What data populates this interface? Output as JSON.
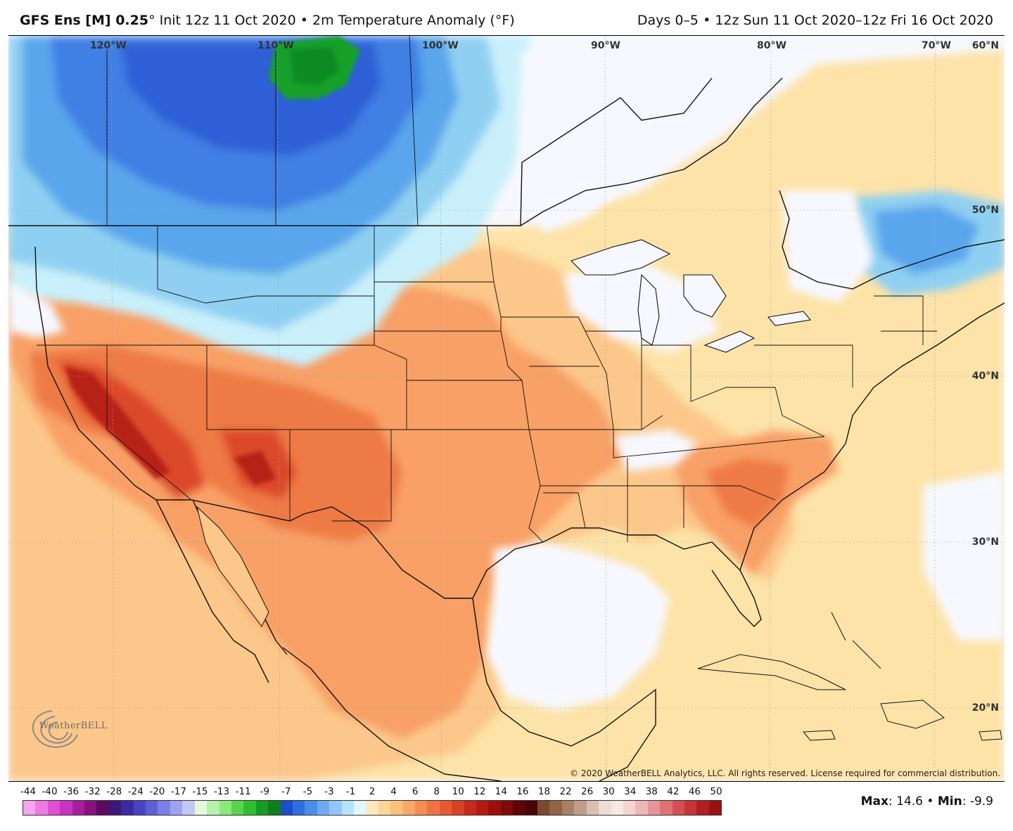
{
  "header": {
    "model": "GFS Ens [M] 0.25",
    "degree": "°",
    "init": "Init 12z 11 Oct 2020",
    "sep": "•",
    "variable": "2m Temperature Anomaly (°F)",
    "days": "Days 0–5",
    "period": "12z Sun 11 Oct 2020–12z Fri 16 Oct 2020"
  },
  "map": {
    "lon_labels": [
      "120°W",
      "110°W",
      "100°W",
      "90°W",
      "80°W",
      "70°W"
    ],
    "lat_labels": [
      "60°N",
      "50°N",
      "40°N",
      "30°N",
      "20°N"
    ],
    "copyright": "© 2020 WeatherBELL Analytics, LLC. All rights reserved. License required for commercial distribution.",
    "logo_text": "WeatherBELL",
    "colors": {
      "ocean_neutral": "#f7f8ff",
      "warm_1": "#fde3a8",
      "warm_2": "#fcc78a",
      "warm_3": "#f8a066",
      "warm_4": "#ee7a45",
      "warm_5": "#dc4a2c",
      "warm_6": "#b82318",
      "cool_1": "#c9f0fb",
      "cool_2": "#8fd0f2",
      "cool_3": "#5aa6ec",
      "cool_4": "#3f7fe4",
      "cool_5": "#2d5ed6",
      "green": "#17a02c",
      "borders": "#111111"
    }
  },
  "legend": {
    "ticks": [
      "-44",
      "-40",
      "-36",
      "-32",
      "-28",
      "-24",
      "-20",
      "-17",
      "-15",
      "-13",
      "-11",
      "-9",
      "-7",
      "-5",
      "-3",
      "-1",
      "2",
      "4",
      "6",
      "8",
      "10",
      "12",
      "14",
      "16",
      "18",
      "22",
      "26",
      "30",
      "34",
      "38",
      "42",
      "46",
      "50"
    ],
    "colors": [
      "#f6a6ee",
      "#ee7ae4",
      "#e04fd6",
      "#c932c3",
      "#a61e9f",
      "#86127f",
      "#5b0a5f",
      "#3a1878",
      "#3c2aa3",
      "#4a44c2",
      "#5d5fd6",
      "#7b80e4",
      "#9fa3ee",
      "#c5c7f6",
      "#e4f8e0",
      "#b7f2a8",
      "#88ea7a",
      "#5ad44e",
      "#2fbe2f",
      "#149c24",
      "#0d7f1b",
      "#1b4fc9",
      "#2d6fdc",
      "#4b8ee8",
      "#6eaaf0",
      "#93c6f5",
      "#b8e2fa",
      "#e2f6fd",
      "#fde9bc",
      "#fcd597",
      "#fbc07c",
      "#f9a766",
      "#f68e53",
      "#f07443",
      "#e65935",
      "#d94127",
      "#c72a1b",
      "#b31a12",
      "#9b100c",
      "#800909",
      "#5f0606",
      "#4a0505",
      "#7a4a2e",
      "#916347",
      "#a97f66",
      "#c19d88",
      "#d8bfb0",
      "#ecdcd4",
      "#f7e9e4",
      "#f6d4d2",
      "#f0b7b7",
      "#e89597",
      "#de7275",
      "#d24f53",
      "#c53437",
      "#b01f22",
      "#9a1013"
    ]
  },
  "stats": {
    "max_label": "Max",
    "max_value": "14.6",
    "min_label": "Min",
    "min_value": "-9.9"
  }
}
